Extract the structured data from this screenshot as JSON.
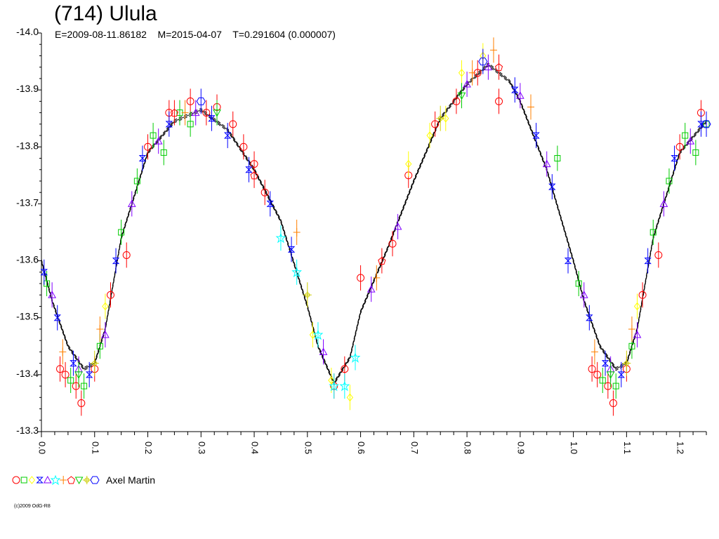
{
  "chart_data": {
    "type": "scatter",
    "title": "(714) Ulula",
    "subtitle": "E=2009-08-11.86182    M=2015-04-07    T=0.291604 (0.000007)",
    "xlabel": "",
    "ylabel": "",
    "xlim": [
      0.0,
      1.25
    ],
    "ylim": [
      -14.0,
      -13.3
    ],
    "y_inverted": true,
    "grid": false,
    "x_ticks": [
      "0.0",
      "0.1",
      "0.2",
      "0.3",
      "0.4",
      "0.5",
      "0.6",
      "0.7",
      "0.8",
      "0.9",
      "1.0",
      "1.1",
      "1.2"
    ],
    "y_ticks": [
      "-14.0",
      "-13.9",
      "-13.8",
      "-13.7",
      "-13.6",
      "-13.5",
      "-13.4",
      "-13.3"
    ],
    "fit_curve": {
      "x": [
        0.0,
        0.02,
        0.05,
        0.08,
        0.1,
        0.12,
        0.15,
        0.2,
        0.25,
        0.3,
        0.35,
        0.4,
        0.45,
        0.5,
        0.52,
        0.55,
        0.58,
        0.6,
        0.65,
        0.7,
        0.75,
        0.8,
        0.84,
        0.88,
        0.9,
        0.95,
        1.0,
        1.02,
        1.05,
        1.08,
        1.1,
        1.12,
        1.15,
        1.2,
        1.25
      ],
      "y": [
        -13.6,
        -13.53,
        -13.45,
        -13.41,
        -13.42,
        -13.48,
        -13.64,
        -13.79,
        -13.845,
        -13.865,
        -13.83,
        -13.76,
        -13.67,
        -13.52,
        -13.45,
        -13.385,
        -13.43,
        -13.51,
        -13.62,
        -13.74,
        -13.85,
        -13.91,
        -13.945,
        -13.915,
        -13.88,
        -13.76,
        -13.6,
        -13.53,
        -13.45,
        -13.41,
        -13.42,
        -13.48,
        -13.64,
        -13.79,
        -13.845
      ]
    },
    "series": [
      {
        "marker": "circle",
        "color": "#ff0000",
        "x": [
          0.035,
          0.045,
          0.065,
          0.075,
          0.1,
          0.13,
          0.16,
          0.2,
          0.24,
          0.28,
          0.31,
          0.33,
          0.36,
          0.38,
          0.4,
          0.42,
          0.55,
          0.57,
          0.6,
          0.66,
          0.69,
          0.74,
          0.78,
          0.82,
          0.86,
          1.035,
          1.045,
          1.065,
          1.075,
          1.1,
          1.13,
          1.16,
          1.2,
          1.24
        ],
        "y": [
          -13.41,
          -13.4,
          -13.38,
          -13.35,
          -13.41,
          -13.54,
          -13.61,
          -13.8,
          -13.86,
          -13.88,
          -13.86,
          -13.87,
          -13.84,
          -13.8,
          -13.77,
          -13.72,
          -13.38,
          -13.41,
          -13.57,
          -13.63,
          -13.75,
          -13.84,
          -13.88,
          -13.93,
          -13.88,
          -13.41,
          -13.4,
          -13.38,
          -13.35,
          -13.41,
          -13.54,
          -13.61,
          -13.8,
          -13.86
        ]
      },
      {
        "marker": "square",
        "color": "#00cc00",
        "x": [
          0.01,
          0.055,
          0.08,
          0.11,
          0.15,
          0.18,
          0.21,
          0.23,
          0.26,
          0.28,
          0.97,
          1.01,
          1.055,
          1.08,
          1.11,
          1.15,
          1.18,
          1.21,
          1.23,
          1.25
        ],
        "y": [
          -13.56,
          -13.39,
          -13.38,
          -13.45,
          -13.65,
          -13.74,
          -13.82,
          -13.79,
          -13.86,
          -13.84,
          -13.78,
          -13.56,
          -13.39,
          -13.38,
          -13.45,
          -13.65,
          -13.74,
          -13.82,
          -13.79,
          -13.84
        ]
      },
      {
        "marker": "diamond",
        "color": "#ffff00",
        "x": [
          0.12,
          0.51,
          0.545,
          0.58,
          0.69,
          0.73,
          0.76,
          0.79,
          0.83,
          1.12
        ],
        "y": [
          -13.52,
          -13.47,
          -13.39,
          -13.36,
          -13.77,
          -13.82,
          -13.85,
          -13.93,
          -13.96,
          -13.52
        ]
      },
      {
        "marker": "hourglass",
        "color": "#0000ff",
        "x": [
          0.005,
          0.03,
          0.06,
          0.09,
          0.14,
          0.19,
          0.24,
          0.32,
          0.35,
          0.39,
          0.43,
          0.47,
          0.89,
          0.93,
          0.96,
          0.99,
          1.03,
          1.06,
          1.09,
          1.14,
          1.19,
          1.24
        ],
        "y": [
          -13.58,
          -13.5,
          -13.42,
          -13.4,
          -13.6,
          -13.78,
          -13.84,
          -13.85,
          -13.82,
          -13.76,
          -13.7,
          -13.62,
          -13.9,
          -13.82,
          -13.73,
          -13.6,
          -13.5,
          -13.42,
          -13.4,
          -13.6,
          -13.78,
          -13.84
        ]
      },
      {
        "marker": "triangle",
        "color": "#8000ff",
        "x": [
          0.02,
          0.07,
          0.12,
          0.17,
          0.22,
          0.29,
          0.53,
          0.62,
          0.67,
          0.8,
          0.84,
          0.9,
          0.95,
          1.02,
          1.07,
          1.12,
          1.17,
          1.22
        ],
        "y": [
          -13.54,
          -13.41,
          -13.47,
          -13.7,
          -13.81,
          -13.86,
          -13.44,
          -13.55,
          -13.66,
          -13.91,
          -13.94,
          -13.89,
          -13.77,
          -13.54,
          -13.41,
          -13.47,
          -13.7,
          -13.81
        ]
      },
      {
        "marker": "star",
        "color": "#00ffff",
        "x": [
          0.45,
          0.48,
          0.52,
          0.55,
          0.57,
          0.59
        ],
        "y": [
          -13.64,
          -13.58,
          -13.47,
          -13.38,
          -13.38,
          -13.43
        ]
      },
      {
        "marker": "cross",
        "color": "#ff8000",
        "x": [
          0.04,
          0.11,
          0.27,
          0.48,
          0.63,
          0.81,
          0.85,
          0.92,
          1.04,
          1.11
        ],
        "y": [
          -13.44,
          -13.48,
          -13.86,
          -13.65,
          -13.57,
          -13.93,
          -13.97,
          -13.87,
          -13.44,
          -13.48
        ]
      },
      {
        "marker": "pentagon",
        "color": "#ff0000",
        "x": [
          0.25,
          0.4,
          0.64,
          0.86
        ],
        "y": [
          -13.86,
          -13.75,
          -13.6,
          -13.94
        ]
      },
      {
        "marker": "down-triangle",
        "color": "#00cc00",
        "x": [
          0.07,
          0.33,
          0.79,
          1.07
        ],
        "y": [
          -13.4,
          -13.86,
          -13.89,
          -13.4
        ]
      },
      {
        "marker": "sun",
        "color": "#cccc00",
        "x": [
          0.1,
          0.5,
          0.75,
          1.1
        ],
        "y": [
          -13.42,
          -13.54,
          -13.85,
          -13.42
        ]
      },
      {
        "marker": "hexagon",
        "color": "#0000ff",
        "x": [
          0.3,
          0.83,
          1.25
        ],
        "y": [
          -13.88,
          -13.95,
          -13.84
        ]
      }
    ],
    "legend": {
      "placement": "bottom-left",
      "label": "Axel Martin"
    }
  },
  "credit": "(c)2009 OdG-R8"
}
